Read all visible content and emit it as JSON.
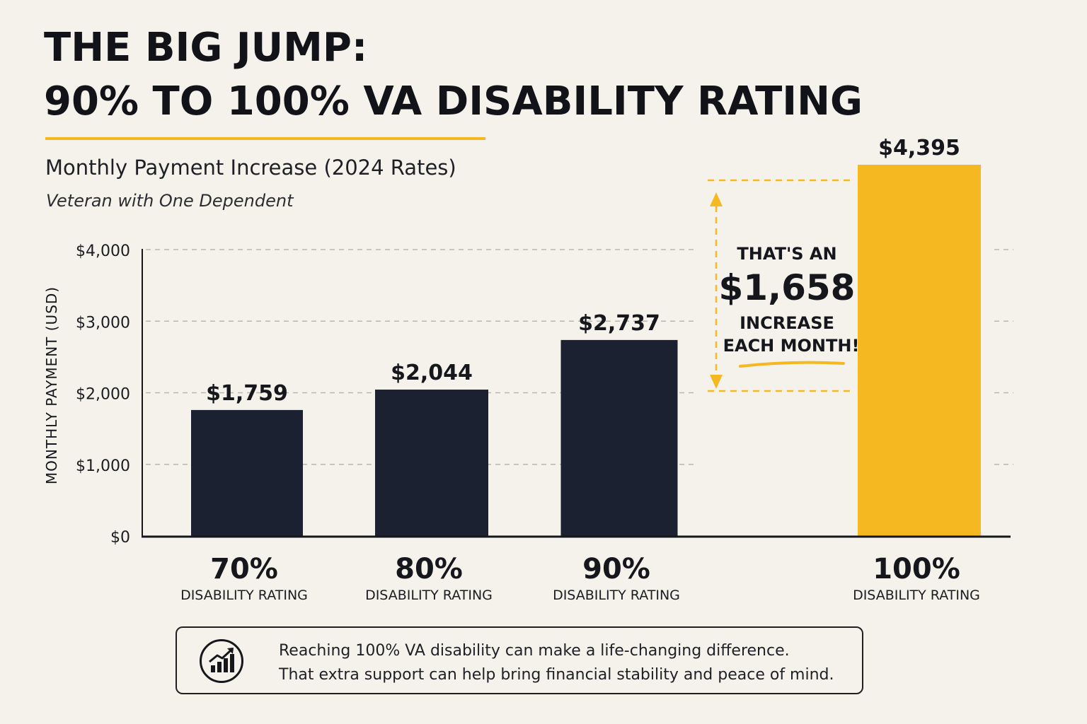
{
  "title": {
    "line1": "THE BIG JUMP:",
    "line2": "90% TO 100% VA DISABILITY RATING"
  },
  "subtitle": "Monthly Payment Increase (2024 Rates)",
  "subtitle2": "Veteran with One Dependent",
  "colors": {
    "accent": "#f6b820",
    "bar_dark": "#1b2130",
    "background": "#f4f2eb"
  },
  "chart_data": {
    "type": "bar",
    "categories": [
      "70%",
      "80%",
      "90%",
      "100%"
    ],
    "category_sublabel": "DISABILITY RATING",
    "values": [
      1759,
      2044,
      2737,
      4395
    ],
    "value_labels": [
      "$1,759",
      "$2,044",
      "$2,737",
      "$4,395"
    ],
    "highlight_index": 3,
    "ylabel": "MONTHLY PAYMENT (USD)",
    "ylim": [
      0,
      4000
    ],
    "yticks": [
      0,
      1000,
      2000,
      3000,
      4000
    ],
    "ytick_labels": [
      "$0",
      "$1,000",
      "$2,000",
      "$3,000",
      "$4,000"
    ],
    "grid": true,
    "annotation": {
      "line1": "THAT'S AN",
      "amount": "$1,658",
      "line3": "INCREASE",
      "line4": "EACH MONTH!"
    }
  },
  "footer": {
    "icon": "chart-growth-icon",
    "line1": "Reaching 100% VA disability can make a life-changing difference.",
    "line2": "That extra support can help bring financial stability and peace of mind."
  }
}
